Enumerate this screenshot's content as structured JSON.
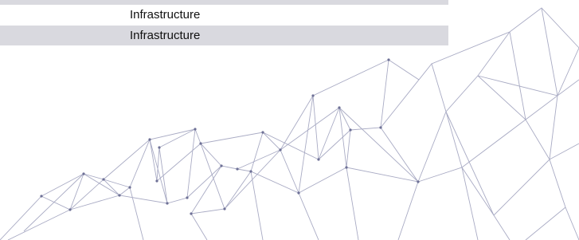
{
  "table": {
    "rows": [
      [
        "Infrastructure"
      ],
      [
        "Infrastructure"
      ]
    ]
  }
}
